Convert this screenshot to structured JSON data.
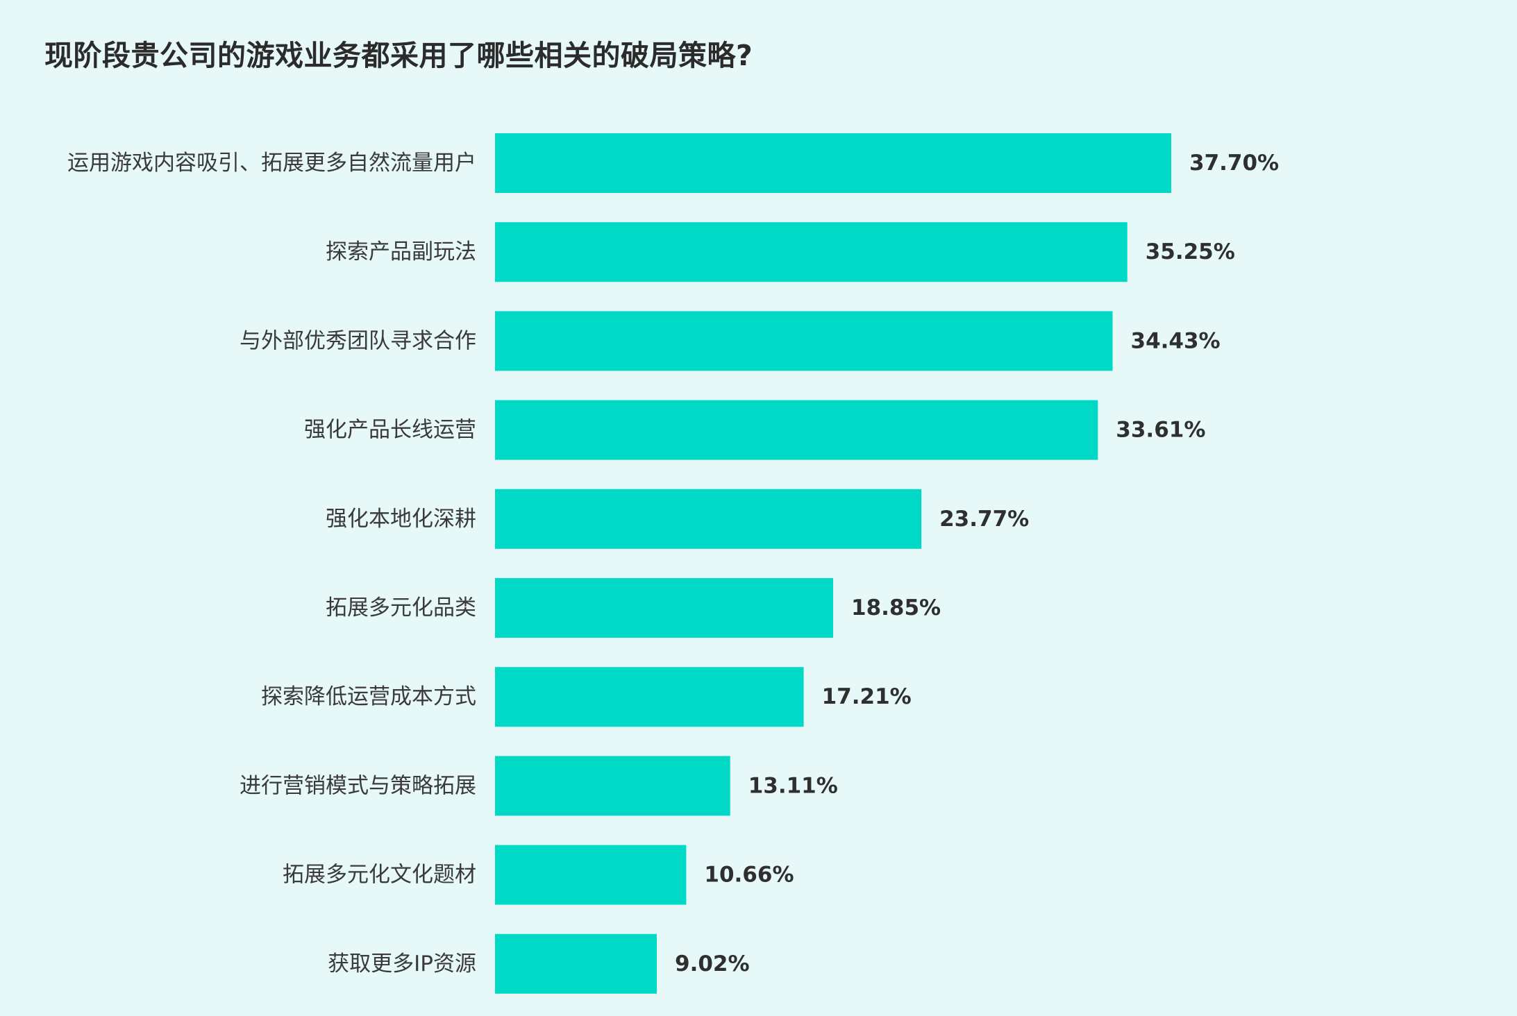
{
  "chart_data": {
    "type": "bar",
    "orientation": "horizontal",
    "title": "现阶段贵公司的游戏业务都采用了哪些相关的破局策略?",
    "categories": [
      "运用游戏内容吸引、拓展更多自然流量用户",
      "探索产品副玩法",
      "与外部优秀团队寻求合作",
      "强化产品长线运营",
      "强化本地化深耕",
      "拓展多元化品类",
      "探索降低运营成本方式",
      "进行营销模式与策略拓展",
      "拓展多元化文化题材",
      "获取更多IP资源"
    ],
    "values": [
      37.7,
      35.25,
      34.43,
      33.61,
      23.77,
      18.85,
      17.21,
      13.11,
      10.66,
      9.02
    ],
    "value_labels": [
      "37.70%",
      "35.25%",
      "34.43%",
      "33.61%",
      "23.77%",
      "18.85%",
      "17.21%",
      "13.11%",
      "10.66%",
      "9.02%"
    ],
    "xlim": [
      0,
      37.7
    ],
    "grid": false,
    "legend": "none",
    "bar_color": "#00d9c6"
  }
}
